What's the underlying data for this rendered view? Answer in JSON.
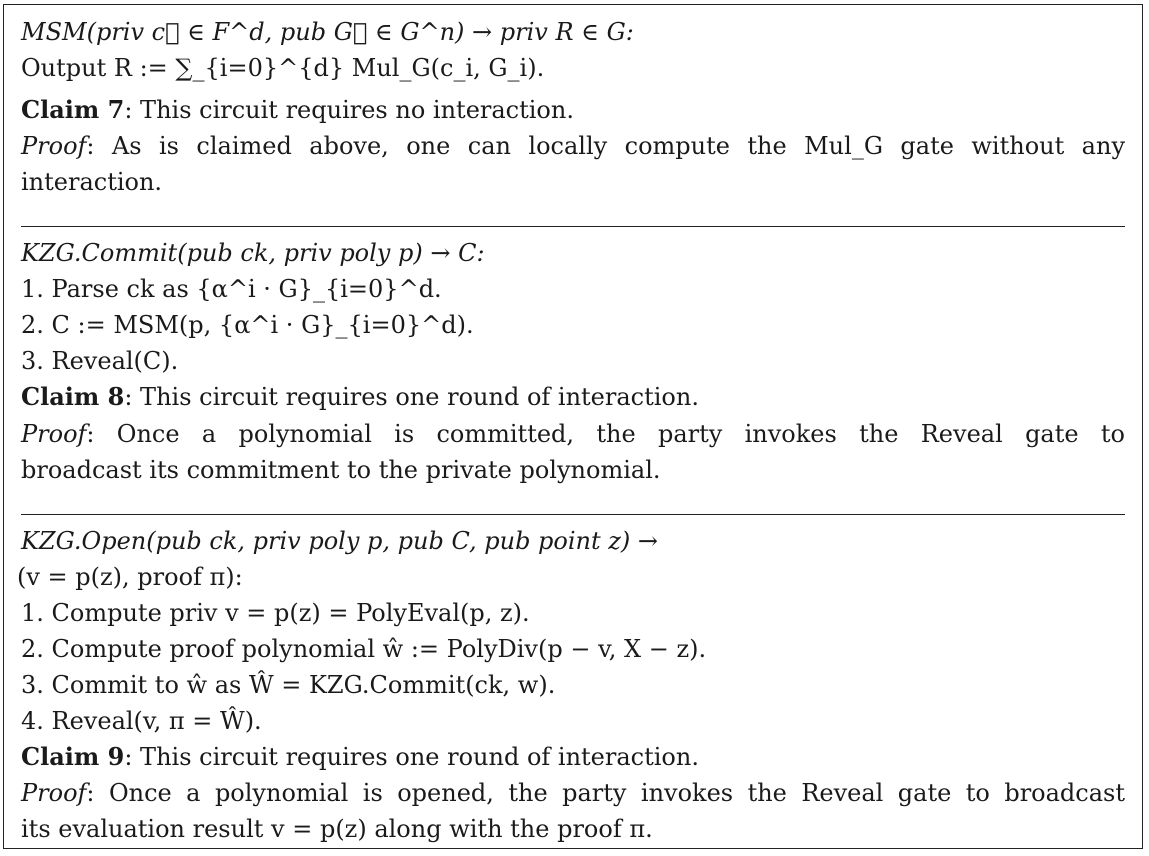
{
  "msm": {
    "signature": "MSM(priv c⃗ ∈ F^d, pub G⃗ ∈ G^n) → priv R ∈ G:",
    "output": "Output R := ∑_{i=0}^{d} Mul_G(c_i, G_i).",
    "claim_label": "Claim 7",
    "claim_text": ": This circuit requires no interaction.",
    "proof_label": "Proof",
    "proof_line1": ": As is claimed above, one can locally compute the Mul_G gate without any",
    "proof_line2": "interaction."
  },
  "kzg_commit": {
    "signature": "KZG.Commit(pub ck, priv poly p) → C:",
    "steps": [
      "1. Parse ck as {α^i · G}_{i=0}^d.",
      "2. C := MSM(p, {α^i · G}_{i=0}^d).",
      "3. Reveal(C)."
    ],
    "claim_label": "Claim 8",
    "claim_text": ": This circuit requires one round of interaction.",
    "proof_label": "Proof",
    "proof_line1": ": Once a polynomial is committed, the party invokes the Reveal gate to",
    "proof_line2": "broadcast its commitment to the private polynomial."
  },
  "kzg_open": {
    "signature_line1": "KZG.Open(pub ck, priv poly p, pub C, pub point z) →",
    "signature_line2": "(v = p(z), proof π):",
    "steps": [
      "1. Compute priv v = p(z) = PolyEval(p, z).",
      "2. Compute proof polynomial ŵ := PolyDiv(p − v, X − z).",
      "3. Commit to ŵ as Ŵ = KZG.Commit(ck, w).",
      "4. Reveal(v, π = Ŵ)."
    ],
    "claim_label": "Claim 9",
    "claim_text": ": This circuit requires one round of interaction.",
    "proof_label": "Proof",
    "proof_line1": ": Once a polynomial is opened, the party invokes the Reveal gate to broadcast",
    "proof_line2": "its evaluation result v = p(z) along with the proof π."
  }
}
